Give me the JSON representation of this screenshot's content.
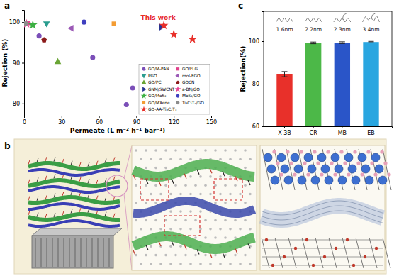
{
  "panels": [
    "a",
    "b",
    "c"
  ],
  "chart_data": [
    {
      "type": "scatter",
      "x_label": "Permeate (L m⁻² h⁻¹ bar⁻¹)",
      "y_label": "Rejection (%)",
      "annotation": "This work",
      "xlim": [
        0,
        150
      ],
      "xticks": [
        0,
        30,
        60,
        90,
        120,
        150
      ],
      "ylim": [
        77,
        103
      ],
      "yticks": [
        80,
        90,
        100
      ],
      "legend": "lower right",
      "series": [
        {
          "name": "GO/M-PAN",
          "color": "#7b4fb8",
          "marker": "circle",
          "x": [
            12,
            55,
            82,
            87
          ],
          "values": [
            96.6,
            91.3,
            79.7,
            83.8
          ]
        },
        {
          "name": "GO/FLG",
          "color": "#e0408a",
          "marker": "square",
          "x": [
            3
          ],
          "values": [
            99.8
          ]
        },
        {
          "name": "PGO",
          "color": "#2a9d8f",
          "marker": "triangle-down",
          "x": [
            18
          ],
          "values": [
            99.7
          ]
        },
        {
          "name": "mol-EGO",
          "color": "#9b59b6",
          "marker": "triangle-left",
          "x": [
            38
          ],
          "values": [
            98.5
          ]
        },
        {
          "name": "GO/PC",
          "color": "#6aa535",
          "marker": "triangle-up",
          "x": [
            27
          ],
          "values": [
            90.2
          ]
        },
        {
          "name": "GOCN",
          "color": "#8b1a1a",
          "marker": "pentagon",
          "x": [
            16
          ],
          "values": [
            95.6
          ]
        },
        {
          "name": "GNM/SWCNT",
          "color": "#283593",
          "marker": "triangle-right",
          "x": [
            110
          ],
          "values": [
            98.8
          ]
        },
        {
          "name": "a-BN/GO",
          "color": "#e84393",
          "marker": "star",
          "x": [
            2
          ],
          "values": [
            99.6
          ]
        },
        {
          "name": "GO/MoS₂",
          "color": "#3cb043",
          "marker": "star",
          "x": [
            7
          ],
          "values": [
            99.3
          ]
        },
        {
          "name": "MoS₂/GO",
          "color": "#3f3fbf",
          "marker": "circle",
          "x": [
            48
          ],
          "values": [
            100
          ]
        },
        {
          "name": "GO/MXene",
          "color": "#f39c33",
          "marker": "square",
          "x": [
            72
          ],
          "values": [
            99.6
          ]
        },
        {
          "name": "Ti₃C₂Tₓ/GO",
          "color": "#8c8c8c",
          "marker": "circle",
          "x": [
            1
          ],
          "values": [
            99.7
          ]
        },
        {
          "name": "GO-AA-Ti₃C₂Tₓ",
          "color": "#e8302a",
          "marker": "star",
          "x": [
            112,
            120,
            135
          ],
          "values": [
            99.2,
            97,
            95.8
          ]
        }
      ]
    },
    {
      "type": "bar",
      "y_label": "Rejection(%)",
      "categories": [
        "X-3B",
        "CR",
        "MB",
        "EB"
      ],
      "values": [
        84.5,
        99.2,
        99.3,
        99.6
      ],
      "errors": [
        1.2,
        0.4,
        0.4,
        0.3
      ],
      "colors": [
        "#e8302a",
        "#4cb848",
        "#2a55c8",
        "#29a6e0"
      ],
      "annotations": [
        "1.6nm",
        "2.2nm",
        "2.3nm",
        "3.4nm"
      ],
      "ylim": [
        60,
        114
      ],
      "yticks": [
        60,
        80,
        100
      ]
    }
  ]
}
